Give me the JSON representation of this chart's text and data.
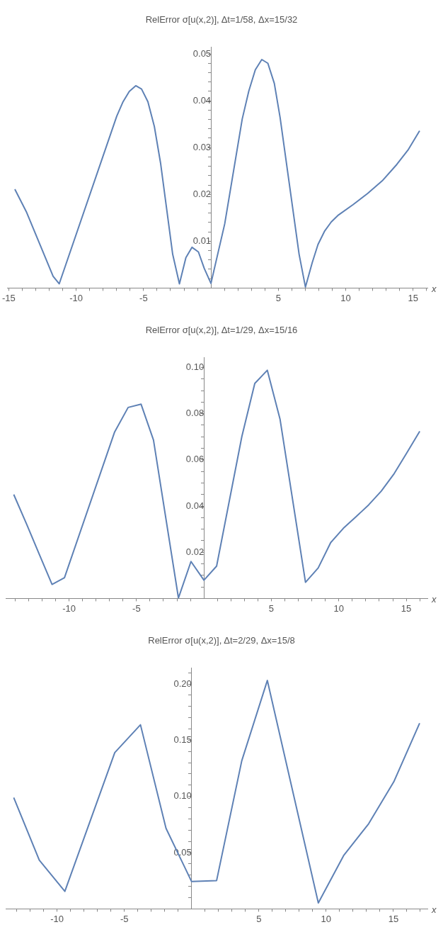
{
  "chart_data": [
    {
      "type": "line",
      "title": "RelError σ[u(x,2)], Δt=1/58, Δx=15/32",
      "xlabel": "x",
      "color": "#5e81b5",
      "x": [
        -14.55,
        -13.7,
        -11.71,
        -11.26,
        -6.99,
        -6.52,
        -6.06,
        -5.58,
        -5.15,
        -4.68,
        -4.2,
        -3.74,
        -2.84,
        -2.34,
        -1.86,
        -1.41,
        -0.93,
        -0.5,
        0,
        1.02,
        2.32,
        2.81,
        3.29,
        3.77,
        4.22,
        4.7,
        5.13,
        6.54,
        7.01,
        7.51,
        7.94,
        8.44,
        8.92,
        9.46,
        10.54,
        11.62,
        12.71,
        13.79,
        14.65,
        15.48
      ],
      "values": [
        0.0211,
        0.0163,
        0.0025,
        0.0009,
        0.0367,
        0.0398,
        0.042,
        0.0432,
        0.0425,
        0.0398,
        0.0345,
        0.0267,
        0.0072,
        0.0009,
        0.0065,
        0.0087,
        0.0077,
        0.0042,
        0.001,
        0.0137,
        0.0361,
        0.0421,
        0.0466,
        0.0488,
        0.048,
        0.0437,
        0.0364,
        0.0072,
        0.0002,
        0.0054,
        0.0093,
        0.0122,
        0.0141,
        0.0156,
        0.0178,
        0.0202,
        0.0229,
        0.0264,
        0.0296,
        0.0336
      ],
      "xlim": [
        -15.1,
        16.06
      ],
      "ylim": [
        0,
        0.0514
      ],
      "xticks": [
        -15,
        {
          "value": -14,
          "label": null
        },
        {
          "value": -13,
          "label": null
        },
        {
          "value": -12,
          "label": null
        },
        {
          "value": -11,
          "label": null
        },
        -10,
        {
          "value": -9,
          "label": null
        },
        {
          "value": -8,
          "label": null
        },
        {
          "value": -7,
          "label": null
        },
        {
          "value": -6,
          "label": null
        },
        -5,
        {
          "value": -4,
          "label": null
        },
        {
          "value": -3,
          "label": null
        },
        {
          "value": -2,
          "label": null
        },
        {
          "value": -1,
          "label": null
        },
        {
          "value": 1,
          "label": null
        },
        {
          "value": 2,
          "label": null
        },
        {
          "value": 3,
          "label": null
        },
        {
          "value": 4,
          "label": null
        },
        5,
        {
          "value": 6,
          "label": null
        },
        {
          "value": 7,
          "label": null
        },
        {
          "value": 8,
          "label": null
        },
        {
          "value": 9,
          "label": null
        },
        10,
        {
          "value": 11,
          "label": null
        },
        {
          "value": 12,
          "label": null
        },
        {
          "value": 13,
          "label": null
        },
        {
          "value": 14,
          "label": null
        },
        15,
        {
          "value": 16,
          "label": null
        }
      ],
      "yticks": [
        {
          "value": 0.002,
          "label": null
        },
        {
          "value": 0.004,
          "label": null
        },
        {
          "value": 0.006,
          "label": null
        },
        {
          "value": 0.008,
          "label": null
        },
        0.01,
        {
          "value": 0.012,
          "label": null
        },
        {
          "value": 0.014,
          "label": null
        },
        {
          "value": 0.016,
          "label": null
        },
        {
          "value": 0.018,
          "label": null
        },
        0.02,
        {
          "value": 0.022,
          "label": null
        },
        {
          "value": 0.024,
          "label": null
        },
        {
          "value": 0.026,
          "label": null
        },
        {
          "value": 0.028,
          "label": null
        },
        0.03,
        {
          "value": 0.032,
          "label": null
        },
        {
          "value": 0.034,
          "label": null
        },
        {
          "value": 0.036,
          "label": null
        },
        {
          "value": 0.038,
          "label": null
        },
        0.04,
        {
          "value": 0.042,
          "label": null
        },
        {
          "value": 0.044,
          "label": null
        },
        {
          "value": 0.046,
          "label": null
        },
        {
          "value": 0.048,
          "label": null
        },
        0.05
      ],
      "grid": false,
      "legend": false,
      "marker": "none",
      "line_style": "solid"
    },
    {
      "type": "line",
      "title": "RelError σ[u(x,2)], Δt=1/29, Δx=15/16",
      "xlabel": "x",
      "color": "#5e81b5",
      "x": [
        -14.1,
        -13.15,
        -12.19,
        -11.26,
        -10.34,
        -6.62,
        -5.62,
        -4.66,
        -3.74,
        -1.89,
        -0.96,
        0,
        0.94,
        2.81,
        3.77,
        4.7,
        5.64,
        7.53,
        8.47,
        9.4,
        10.34,
        11.28,
        12.21,
        13.15,
        14.11,
        15.04,
        16.0
      ],
      "values": [
        0.045,
        0.0322,
        0.0189,
        0.0061,
        0.009,
        0.0721,
        0.0827,
        0.0841,
        0.0686,
        0.0002,
        0.016,
        0.0079,
        0.014,
        0.0701,
        0.0931,
        0.0988,
        0.0777,
        0.007,
        0.0132,
        0.0242,
        0.0304,
        0.0354,
        0.0405,
        0.0465,
        0.0541,
        0.063,
        0.0724
      ],
      "xlim": [
        -14.7,
        16.57
      ],
      "ylim": [
        0,
        0.1042
      ],
      "xticks": [
        {
          "value": -14,
          "label": null
        },
        {
          "value": -13,
          "label": null
        },
        {
          "value": -12,
          "label": null
        },
        {
          "value": -11,
          "label": null
        },
        -10,
        {
          "value": -9,
          "label": null
        },
        {
          "value": -8,
          "label": null
        },
        {
          "value": -7,
          "label": null
        },
        {
          "value": -6,
          "label": null
        },
        -5,
        {
          "value": -4,
          "label": null
        },
        {
          "value": -3,
          "label": null
        },
        {
          "value": -2,
          "label": null
        },
        {
          "value": -1,
          "label": null
        },
        {
          "value": 1,
          "label": null
        },
        {
          "value": 2,
          "label": null
        },
        {
          "value": 3,
          "label": null
        },
        {
          "value": 4,
          "label": null
        },
        5,
        {
          "value": 6,
          "label": null
        },
        {
          "value": 7,
          "label": null
        },
        {
          "value": 8,
          "label": null
        },
        {
          "value": 9,
          "label": null
        },
        10,
        {
          "value": 11,
          "label": null
        },
        {
          "value": 12,
          "label": null
        },
        {
          "value": 13,
          "label": null
        },
        {
          "value": 14,
          "label": null
        },
        15,
        {
          "value": 16,
          "label": null
        }
      ],
      "yticks": [
        {
          "value": 0.005,
          "label": null
        },
        {
          "value": 0.01,
          "label": null
        },
        {
          "value": 0.015,
          "label": null
        },
        0.02,
        {
          "value": 0.025,
          "label": null
        },
        {
          "value": 0.03,
          "label": null
        },
        {
          "value": 0.035,
          "label": null
        },
        0.04,
        {
          "value": 0.045,
          "label": null
        },
        {
          "value": 0.05,
          "label": null
        },
        {
          "value": 0.055,
          "label": null
        },
        0.06,
        {
          "value": 0.065,
          "label": null
        },
        {
          "value": 0.07,
          "label": null
        },
        {
          "value": 0.075,
          "label": null
        },
        0.08,
        {
          "value": 0.085,
          "label": null
        },
        {
          "value": 0.09,
          "label": null
        },
        {
          "value": 0.095,
          "label": null
        },
        {
          "value": 0.1,
          "label": "0.10"
        }
      ],
      "grid": false,
      "legend": false,
      "marker": "none",
      "line_style": "solid"
    },
    {
      "type": "line",
      "title": "RelError σ[u(x,2)], Δt=2/29, Δx=15/8",
      "xlabel": "x",
      "color": "#5e81b5",
      "x": [
        -13.22,
        -11.32,
        -9.42,
        -5.71,
        -3.8,
        -1.9,
        0,
        1.86,
        3.73,
        5.63,
        9.42,
        11.3,
        13.16,
        15.03,
        16.95
      ],
      "values": [
        0.099,
        0.0433,
        0.0156,
        0.139,
        0.1637,
        0.0716,
        0.0243,
        0.0252,
        0.1317,
        0.2031,
        0.0053,
        0.0474,
        0.0757,
        0.113,
        0.1651
      ],
      "xlim": [
        -13.82,
        17.53
      ],
      "ylim": [
        0,
        0.214
      ],
      "xticks": [
        {
          "value": -13,
          "label": null
        },
        {
          "value": -12,
          "label": null
        },
        {
          "value": -11,
          "label": null
        },
        -10,
        {
          "value": -9,
          "label": null
        },
        {
          "value": -8,
          "label": null
        },
        {
          "value": -7,
          "label": null
        },
        {
          "value": -6,
          "label": null
        },
        -5,
        {
          "value": -4,
          "label": null
        },
        {
          "value": -3,
          "label": null
        },
        {
          "value": -2,
          "label": null
        },
        {
          "value": -1,
          "label": null
        },
        {
          "value": 1,
          "label": null
        },
        {
          "value": 2,
          "label": null
        },
        {
          "value": 3,
          "label": null
        },
        {
          "value": 4,
          "label": null
        },
        5,
        {
          "value": 6,
          "label": null
        },
        {
          "value": 7,
          "label": null
        },
        {
          "value": 8,
          "label": null
        },
        {
          "value": 9,
          "label": null
        },
        10,
        {
          "value": 11,
          "label": null
        },
        {
          "value": 12,
          "label": null
        },
        {
          "value": 13,
          "label": null
        },
        {
          "value": 14,
          "label": null
        },
        15,
        {
          "value": 16,
          "label": null
        },
        {
          "value": 17,
          "label": null
        }
      ],
      "yticks": [
        {
          "value": 0.01,
          "label": null
        },
        {
          "value": 0.02,
          "label": null
        },
        {
          "value": 0.03,
          "label": null
        },
        {
          "value": 0.04,
          "label": null
        },
        0.05,
        {
          "value": 0.06,
          "label": null
        },
        {
          "value": 0.07,
          "label": null
        },
        {
          "value": 0.08,
          "label": null
        },
        {
          "value": 0.09,
          "label": null
        },
        {
          "value": 0.1,
          "label": "0.10"
        },
        {
          "value": 0.11,
          "label": null
        },
        {
          "value": 0.12,
          "label": null
        },
        {
          "value": 0.13,
          "label": null
        },
        {
          "value": 0.14,
          "label": null
        },
        0.15,
        {
          "value": 0.16,
          "label": null
        },
        {
          "value": 0.17,
          "label": null
        },
        {
          "value": 0.18,
          "label": null
        },
        {
          "value": 0.19,
          "label": null
        },
        {
          "value": 0.2,
          "label": "0.20"
        },
        {
          "value": 0.21,
          "label": null
        }
      ],
      "grid": false,
      "legend": false,
      "marker": "none",
      "line_style": "solid"
    }
  ]
}
